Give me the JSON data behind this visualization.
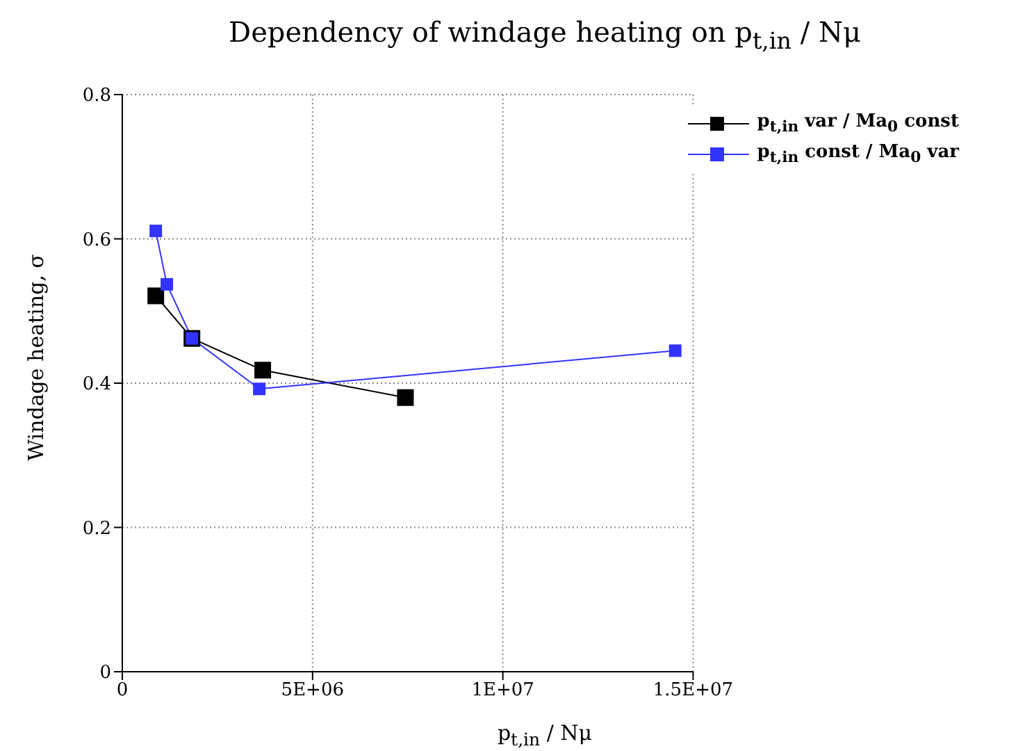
{
  "chart_data": {
    "type": "line",
    "title": "Dependency of windage heating on p$_{t,in}$ / Nμ",
    "xlabel": "p$_{t,in}$ / Nμ",
    "ylabel": "Windage heating, σ",
    "xlim": [
      0,
      15000000
    ],
    "xticks": [
      0,
      {
        "value": 5000000,
        "label": "5E+06"
      },
      {
        "value": 10000000,
        "label": "1E+07"
      },
      {
        "value": 15000000,
        "label": "1.5E+07"
      }
    ],
    "ylim": [
      0,
      0.8
    ],
    "yticks": [
      0,
      0.2,
      0.4,
      0.6,
      0.8
    ],
    "grid": true,
    "legend": "top right",
    "marker": "square",
    "series": [
      {
        "name": "p$_{t,in}$ var / Ma$_{0}$ const",
        "color": "#000000",
        "x": [
          880000,
          1830000,
          3690000,
          7440000
        ],
        "values": [
          0.521,
          0.462,
          0.418,
          0.38
        ]
      },
      {
        "name": "p$_{t,in}$ const / Ma$_{0}$ var",
        "color": "#3333ff",
        "x": [
          880000,
          1170000,
          1830000,
          3600000,
          14530000
        ],
        "values": [
          0.611,
          0.537,
          0.462,
          0.392,
          0.445
        ]
      }
    ]
  }
}
